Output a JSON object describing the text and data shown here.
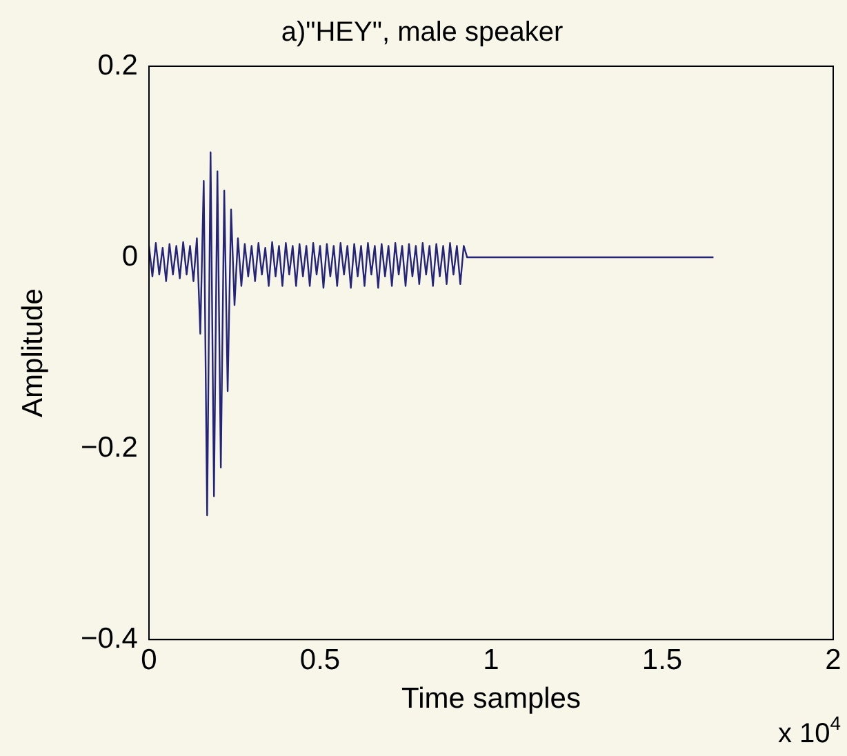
{
  "chart_data": {
    "type": "line",
    "title": "a)\"HEY\", male speaker",
    "xlabel": "Time samples",
    "ylabel": "Amplitude",
    "annotations": [
      "x 10$^{4}$"
    ],
    "x": [
      0,
      0.01,
      0.02,
      0.03,
      0.04,
      0.05,
      0.06,
      0.07,
      0.08,
      0.09,
      0.1,
      0.11,
      0.12,
      0.13,
      0.14,
      0.15,
      0.16,
      0.17,
      0.18,
      0.19,
      0.2,
      0.21,
      0.22,
      0.23,
      0.24,
      0.25,
      0.26,
      0.27,
      0.28,
      0.29,
      0.3,
      0.31,
      0.32,
      0.33,
      0.34,
      0.35,
      0.36,
      0.37,
      0.38,
      0.39,
      0.4,
      0.41,
      0.42,
      0.43,
      0.44,
      0.45,
      0.46,
      0.47,
      0.48,
      0.49,
      0.5,
      0.51,
      0.52,
      0.53,
      0.54,
      0.55,
      0.56,
      0.57,
      0.58,
      0.59,
      0.6,
      0.61,
      0.62,
      0.63,
      0.64,
      0.65,
      0.66,
      0.67,
      0.68,
      0.69,
      0.7,
      0.71,
      0.72,
      0.73,
      0.74,
      0.75,
      0.76,
      0.77,
      0.78,
      0.79,
      0.8,
      0.81,
      0.82,
      0.83,
      0.84,
      0.85,
      0.86,
      0.87,
      0.88,
      0.89,
      0.9,
      0.91,
      0.92,
      0.93,
      1.65
    ],
    "series": [
      {
        "color": "#24247a",
        "values": [
          0.012,
          -0.02,
          0.015,
          -0.018,
          0.01,
          -0.025,
          0.014,
          -0.018,
          0.012,
          -0.022,
          0.016,
          -0.018,
          0.012,
          -0.025,
          0.02,
          -0.08,
          0.08,
          -0.27,
          0.11,
          -0.25,
          0.09,
          -0.22,
          0.07,
          -0.14,
          0.05,
          -0.05,
          0.02,
          -0.03,
          0.014,
          -0.02,
          0.012,
          -0.025,
          0.015,
          -0.018,
          0.01,
          -0.03,
          0.016,
          -0.02,
          0.012,
          -0.03,
          0.015,
          -0.018,
          0.012,
          -0.03,
          0.014,
          -0.02,
          0.012,
          -0.03,
          0.015,
          -0.018,
          0.012,
          -0.032,
          0.014,
          -0.02,
          0.012,
          -0.03,
          0.015,
          -0.018,
          0.012,
          -0.032,
          0.014,
          -0.02,
          0.012,
          -0.03,
          0.015,
          -0.018,
          0.012,
          -0.032,
          0.014,
          -0.02,
          0.012,
          -0.03,
          0.015,
          -0.018,
          0.012,
          -0.03,
          0.014,
          -0.02,
          0.012,
          -0.028,
          0.015,
          -0.018,
          0.012,
          -0.03,
          0.014,
          -0.02,
          0.012,
          -0.028,
          0.015,
          -0.018,
          0.012,
          -0.028,
          0.012,
          0,
          0
        ]
      }
    ],
    "xlim": [
      0,
      2
    ],
    "xticks": [
      0,
      0.5,
      1,
      1.5,
      2
    ],
    "ylim": [
      -0.4,
      0.2
    ],
    "yticks": [
      -0.4,
      -0.2,
      0,
      0.2
    ],
    "grid": false,
    "legend": false,
    "marker": "none",
    "line_style": "solid"
  }
}
